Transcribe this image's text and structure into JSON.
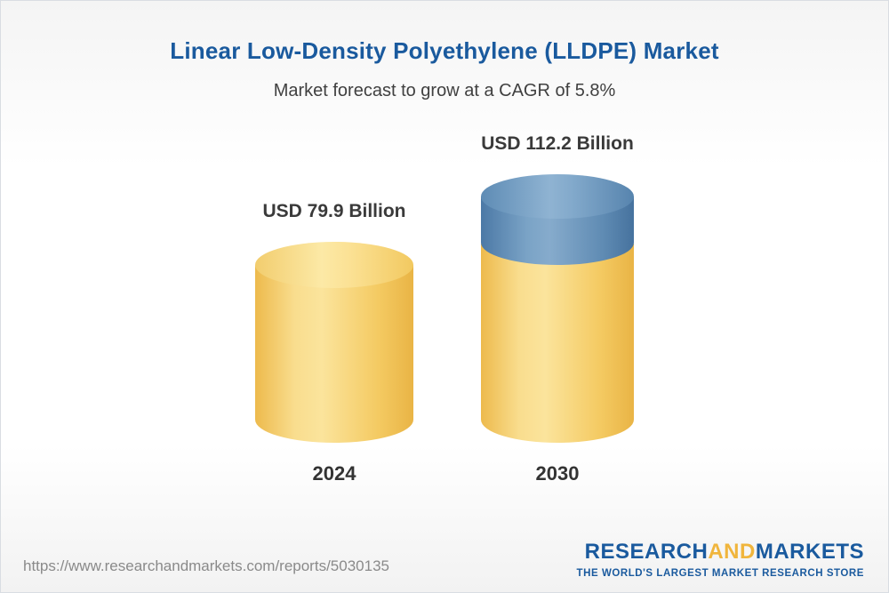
{
  "header": {
    "title": "Linear Low-Density Polyethylene (LLDPE) Market",
    "subtitle": "Market forecast to grow at a CAGR of 5.8%"
  },
  "chart_data": {
    "type": "bar",
    "variant": "3d-cylinder",
    "title": "Linear Low-Density Polyethylene (LLDPE) Market",
    "subtitle": "Market forecast to grow at a CAGR of 5.8%",
    "cagr_percent": 5.8,
    "unit": "USD Billion",
    "categories": [
      "2024",
      "2030"
    ],
    "values": [
      79.9,
      112.2
    ],
    "value_labels": [
      "USD 79.9 Billion",
      "USD 112.2 Billion"
    ],
    "series_note": "2030 bar shows base value in yellow plus growth segment in blue",
    "colors": {
      "base_segment": "#F4CA62",
      "growth_segment": "#5E8CB5",
      "title_text": "#1A5A9E",
      "label_text": "#3A3A3A"
    },
    "legend": "none",
    "grid": false
  },
  "footer": {
    "url": "https://www.researchandmarkets.com/reports/5030135",
    "logo": {
      "research": "RESEARCH",
      "and": "AND",
      "markets": "MARKETS",
      "tagline": "THE WORLD'S LARGEST MARKET RESEARCH STORE"
    }
  }
}
